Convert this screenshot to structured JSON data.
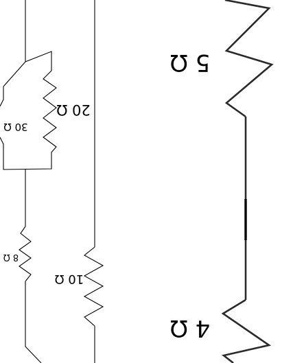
{
  "diagram": {
    "resistors": [
      {
        "id": "r-5",
        "label": "5 Ω"
      },
      {
        "id": "r-4",
        "label": "4 Ω"
      },
      {
        "id": "r-20",
        "label": "20 Ω"
      },
      {
        "id": "r-30",
        "label": "30 Ω"
      },
      {
        "id": "r-8",
        "label": "8 Ω"
      },
      {
        "id": "r-10",
        "label": "10 Ω"
      }
    ],
    "orientation": "rotated 180°"
  }
}
